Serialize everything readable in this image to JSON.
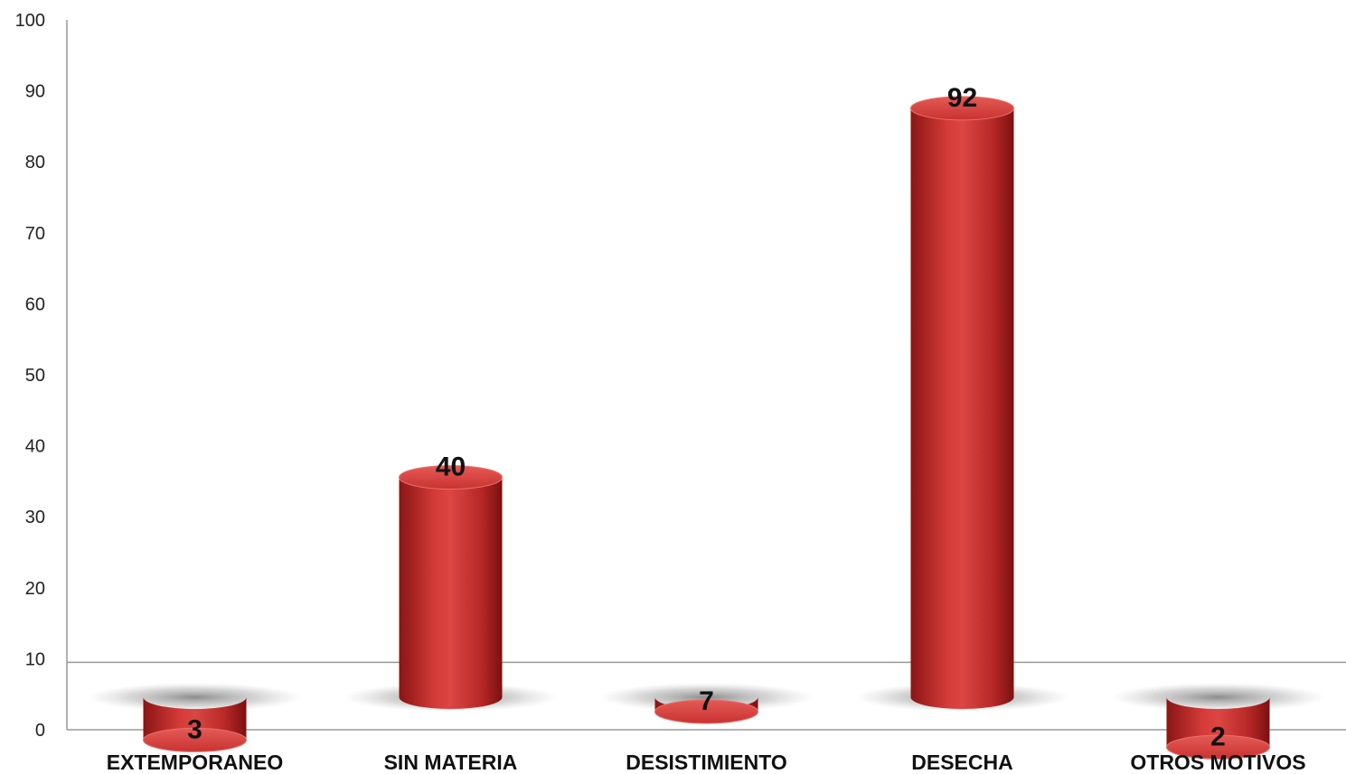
{
  "chart_data": {
    "type": "bar",
    "style": "3d-cylinder",
    "categories": [
      "EXTEMPORANEO",
      "SIN MATERIA",
      "DESISTIMIENTO",
      "DESECHA",
      "OTROS MOTIVOS"
    ],
    "values": [
      3,
      40,
      7,
      92,
      2
    ],
    "data_labels": [
      "3",
      "40",
      "7",
      "92",
      "2"
    ],
    "yticks": [
      "0",
      "10",
      "20",
      "30",
      "40",
      "50",
      "60",
      "70",
      "80",
      "90",
      "100"
    ],
    "ylim": [
      0,
      100
    ],
    "floor_value": 9.5,
    "bar_color": "#c8302e",
    "title": "",
    "xlabel": "",
    "ylabel": "",
    "grid": false,
    "legend": "none"
  }
}
